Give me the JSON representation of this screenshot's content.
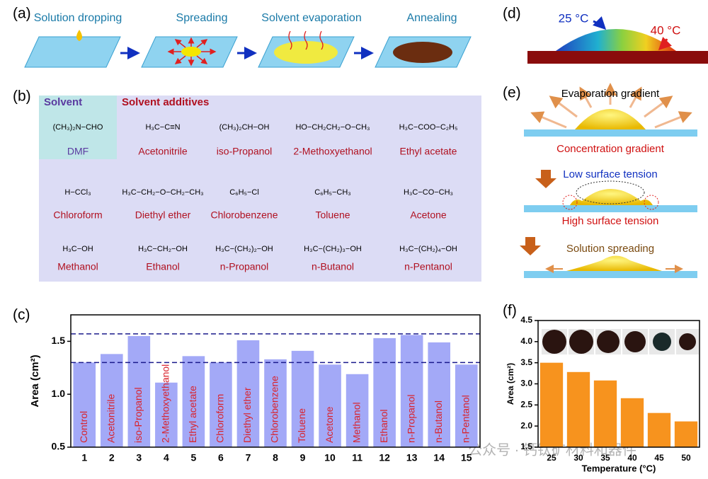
{
  "panel_labels": [
    "(a)",
    "(b)",
    "(c)",
    "(d)",
    "(e)",
    "(f)"
  ],
  "process": {
    "steps": [
      "Solution dropping",
      "Spreading",
      "Solvent evaporation",
      "Annealing"
    ]
  },
  "molecules": {
    "solvent_heading": "Solvent",
    "additives_heading": "Solvent additives",
    "items": [
      {
        "name": "DMF",
        "formula": "(CH₃)₂N−CHO"
      },
      {
        "name": "Acetonitrile",
        "formula": "H₃C−C≡N"
      },
      {
        "name": "iso-Propanol",
        "formula": "(CH₃)₂CH−OH"
      },
      {
        "name": "2-Methoxyethanol",
        "formula": "HO−CH₂CH₂−O−CH₃"
      },
      {
        "name": "Ethyl acetate",
        "formula": "H₃C−COO−C₂H₅"
      },
      {
        "name": "Chloroform",
        "formula": "H−CCl₃"
      },
      {
        "name": "Diethyl ether",
        "formula": "H₃C−CH₂−O−CH₂−CH₃"
      },
      {
        "name": "Chlorobenzene",
        "formula": "C₆H₅−Cl"
      },
      {
        "name": "Toluene",
        "formula": "C₆H₅−CH₃"
      },
      {
        "name": "Acetone",
        "formula": "H₃C−CO−CH₃"
      },
      {
        "name": "Methanol",
        "formula": "H₃C−OH"
      },
      {
        "name": "Ethanol",
        "formula": "H₃C−CH₂−OH"
      },
      {
        "name": "n-Propanol",
        "formula": "H₃C−(CH₂)₂−OH"
      },
      {
        "name": "n-Butanol",
        "formula": "H₃C−(CH₂)₃−OH"
      },
      {
        "name": "n-Pentanol",
        "formula": "H₃C−(CH₂)₄−OH"
      }
    ]
  },
  "droplet": {
    "cool": "25 °C",
    "hot": "40 °C"
  },
  "mechanism": {
    "labels": [
      "Evaporation gradient",
      "Concentration gradient",
      "Low surface tension",
      "High surface tension",
      "Solution spreading"
    ]
  },
  "watermark": "公众号 · 钙钛矿材料和器件",
  "chart_data": [
    {
      "type": "bar",
      "ylabel": "Area (cm²)",
      "categories": [
        "1",
        "2",
        "3",
        "4",
        "5",
        "6",
        "7",
        "8",
        "9",
        "10",
        "11",
        "12",
        "13",
        "14",
        "15"
      ],
      "bar_labels": [
        "Control",
        "Acetonitrile",
        "iso-Propanol",
        "2-Methoxyethanol",
        "Ethyl acetate",
        "Chloroform",
        "Diethyl ether",
        "Chlorobenzene",
        "Toluene",
        "Acetone",
        "Methanol",
        "Ethanol",
        "n-Propanol",
        "n-Butanol",
        "n-Pentanol"
      ],
      "values": [
        1.3,
        1.38,
        1.55,
        1.11,
        1.36,
        1.3,
        1.51,
        1.33,
        1.41,
        1.28,
        1.19,
        1.53,
        1.56,
        1.49,
        1.28
      ],
      "color": "#a3a9f7",
      "label_color": "#d9232d",
      "reference_lines": [
        1.57,
        1.3
      ],
      "reference_color": "#1a1a8c",
      "ylim": [
        0.5,
        1.75
      ],
      "yticks": [
        0.5,
        {
          "value": 1,
          "label": "1.0"
        },
        1.5
      ]
    },
    {
      "type": "bar",
      "ylabel": "Area (cm²)",
      "xlabel": "Temperature (°C)",
      "categories": [
        "25",
        "30",
        "35",
        "40",
        "45",
        "50"
      ],
      "values": [
        3.5,
        3.28,
        3.08,
        2.66,
        2.31,
        2.11
      ],
      "color": "#f7931e",
      "ylim": [
        1.5,
        4.5
      ],
      "yticks": [
        1.5,
        {
          "value": 2,
          "label": "2.0"
        },
        2.5,
        {
          "value": 3,
          "label": "3.0"
        },
        3.5,
        {
          "value": 4,
          "label": "4.0"
        },
        4.5
      ]
    }
  ]
}
